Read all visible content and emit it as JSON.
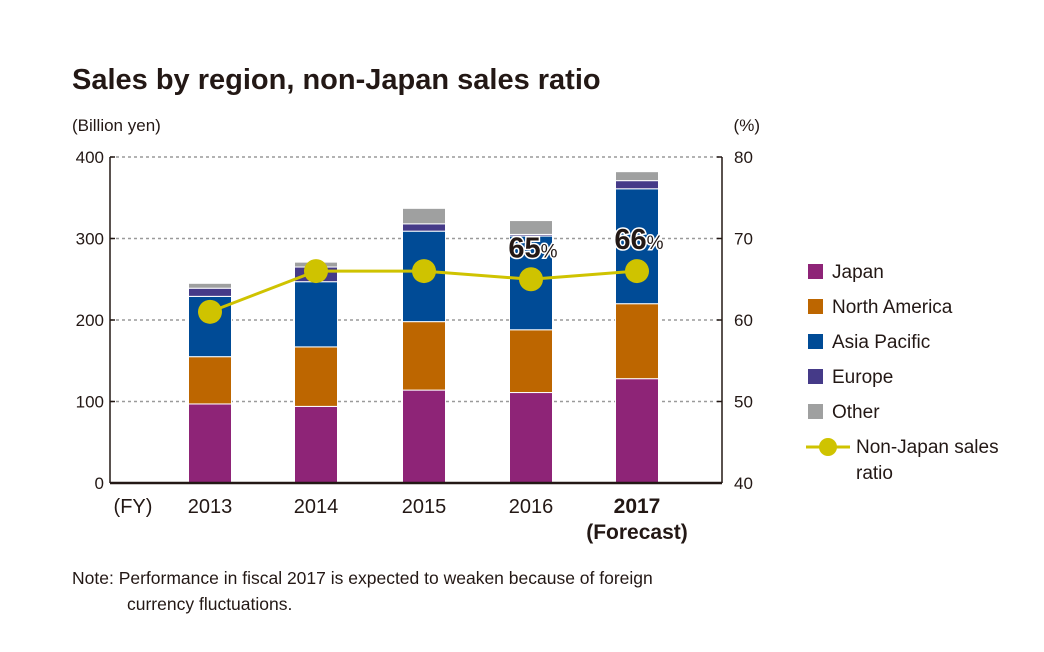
{
  "chart_data": {
    "type": "bar",
    "title": "Sales by region, non-Japan sales ratio",
    "ylabel": "(Billion yen)",
    "y2label": "(%)",
    "xlabel": "(FY)",
    "ylim": [
      0,
      400
    ],
    "y2lim": [
      40,
      80
    ],
    "yticks": [
      0,
      100,
      200,
      300,
      400
    ],
    "y2ticks": [
      40,
      50,
      60,
      70,
      80
    ],
    "grid": true,
    "stacked": true,
    "legend_position": "right",
    "categories": [
      "2013",
      "2014",
      "2015",
      "2016",
      "2017"
    ],
    "category_sublabels": [
      "",
      "",
      "",
      "",
      "(Forecast)"
    ],
    "series": [
      {
        "name": "Japan",
        "color": "#8e2477",
        "values": [
          97,
          94,
          114,
          111,
          128
        ]
      },
      {
        "name": "North America",
        "color": "#bd6600",
        "values": [
          58,
          73,
          84,
          77,
          92
        ]
      },
      {
        "name": "Asia Pacific",
        "color": "#004b96",
        "values": [
          74,
          80,
          111,
          115,
          141
        ]
      },
      {
        "name": "Europe",
        "color": "#453a88",
        "values": [
          10,
          18,
          9,
          2,
          10
        ]
      },
      {
        "name": "Other",
        "color": "#9fa0a0",
        "values": [
          6,
          6,
          19,
          17,
          11
        ]
      }
    ],
    "line_series": {
      "name": "Non-Japan sales ratio",
      "color": "#cfc300",
      "axis": "right",
      "values": [
        61,
        66,
        66,
        65,
        66
      ]
    },
    "annotations": [
      {
        "category": "2016",
        "value": "65",
        "unit": "%"
      },
      {
        "category": "2017",
        "value": "66",
        "unit": "%"
      }
    ]
  },
  "note": {
    "line1": "Note: Performance in fiscal 2017 is expected to weaken because of foreign",
    "line2": "currency fluctuations."
  }
}
